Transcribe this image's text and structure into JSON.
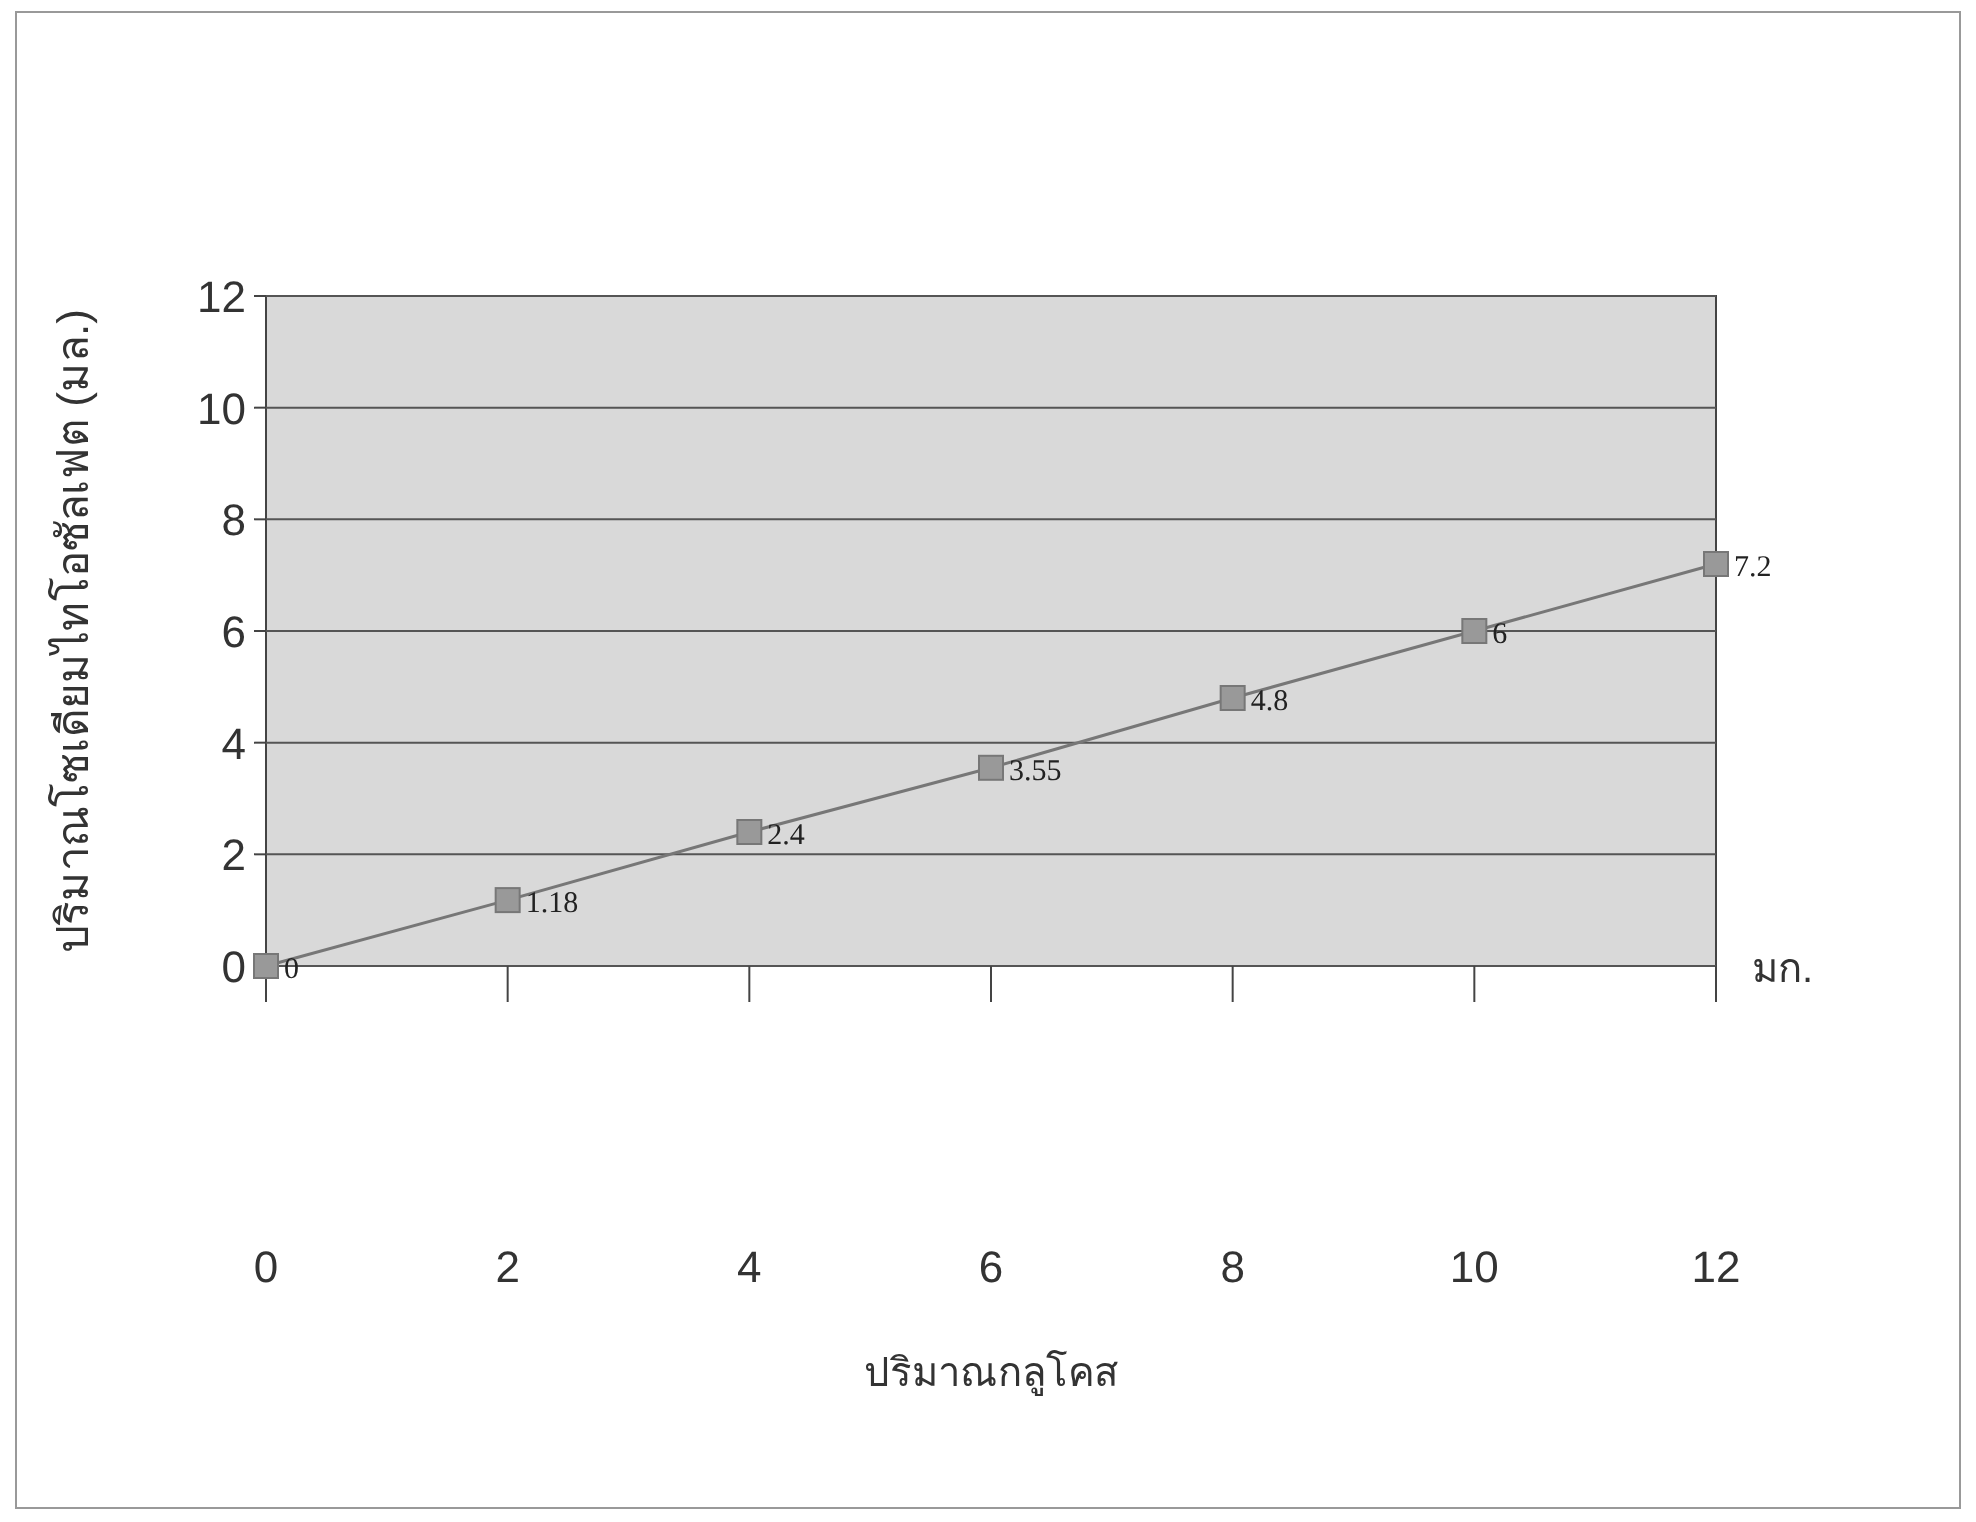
{
  "chart_data": {
    "type": "line",
    "xlabel": "ปริมาณกลูโคส",
    "ylabel": "ปริมาณโซเดียมไทโอซัลเฟต (มล.)",
    "annotations": [
      "มก."
    ],
    "x": [
      0,
      2,
      4,
      6,
      8,
      10,
      12
    ],
    "series": [
      {
        "color": "#777777",
        "values": [
          0,
          1.18,
          2.4,
          3.55,
          4.8,
          6,
          7.2
        ]
      }
    ],
    "xlim": [
      0,
      12
    ],
    "ylim": [
      0,
      12
    ],
    "xticks": [
      0,
      2,
      4,
      6,
      8,
      10,
      12
    ],
    "yticks": [
      0,
      2,
      4,
      6,
      8,
      10,
      12
    ],
    "grid": "y",
    "marker": "square",
    "line_style": "solid",
    "data_labels": true
  }
}
